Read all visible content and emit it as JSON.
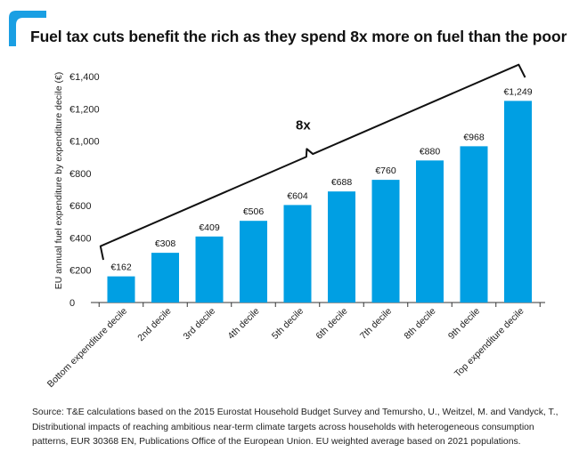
{
  "title": "Fuel tax cuts benefit the rich as they spend 8x more on fuel than the poor",
  "logo": {
    "icon": "brand-corner-mark-icon",
    "color": "#1a9fe3"
  },
  "colors": {
    "bar": "#009fe3",
    "text": "#111111",
    "axis": "#333333"
  },
  "chart_data": {
    "type": "bar",
    "title": "",
    "xlabel": "",
    "ylabel": "EU annual fuel expenditure by expenditure decile (€)",
    "categories": [
      "Bottom expenditure decile",
      "2nd decile",
      "3rd decile",
      "4th decile",
      "5th decile",
      "6th decile",
      "7th decile",
      "8th decile",
      "9th decile",
      "Top expenditure decile"
    ],
    "values": [
      162,
      308,
      409,
      506,
      604,
      688,
      760,
      880,
      968,
      1249
    ],
    "data_labels": [
      "€162",
      "€308",
      "€409",
      "€506",
      "€604",
      "€688",
      "€760",
      "€880",
      "€968",
      "€1,249"
    ],
    "yticks": [
      0,
      200,
      400,
      600,
      800,
      1000,
      1200,
      1400
    ],
    "ytick_labels": [
      "0",
      "€200",
      "€400",
      "€600",
      "€800",
      "€1,000",
      "€1,200",
      "€1,400"
    ],
    "ylim": [
      0,
      1400
    ],
    "grid": false,
    "legend": "none",
    "annotation": {
      "text": "8x",
      "type": "brace",
      "from_category": "Bottom expenditure decile",
      "to_category": "Top expenditure decile"
    }
  },
  "source": {
    "lines": [
      "Source: T&E calculations based on the 2015 Eurostat Household Budget Survey and Temursho, U., Weitzel, M. and Vandyck, T.,",
      "Distributional impacts of reaching ambitious near-term climate targets across households with heterogeneous consumption",
      "patterns, EUR 30368 EN, Publications Office of the European Union. EU weighted average based on 2021 populations."
    ]
  }
}
